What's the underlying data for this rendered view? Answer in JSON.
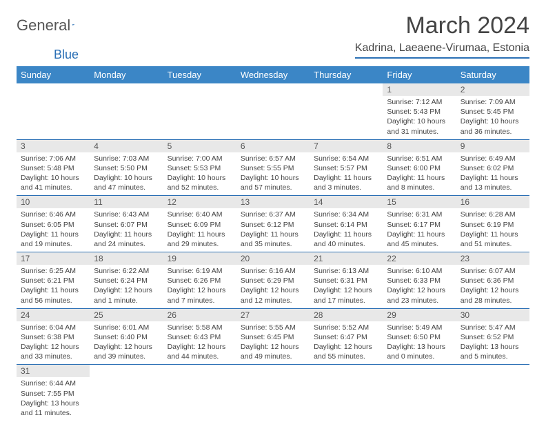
{
  "logo": {
    "word1": "General",
    "word2": "Blue",
    "flag_color": "#2a6fb5"
  },
  "title": "March 2024",
  "location": "Kadrina, Laeaene-Virumaa, Estonia",
  "colors": {
    "header_bg": "#3b86c6",
    "header_text": "#ffffff",
    "border": "#2a6fb5",
    "daynum_bg": "#e8e8e8",
    "text": "#444444"
  },
  "weekdays": [
    "Sunday",
    "Monday",
    "Tuesday",
    "Wednesday",
    "Thursday",
    "Friday",
    "Saturday"
  ],
  "rows": [
    [
      null,
      null,
      null,
      null,
      null,
      {
        "n": "1",
        "sr": "Sunrise: 7:12 AM",
        "ss": "Sunset: 5:43 PM",
        "dl1": "Daylight: 10 hours",
        "dl2": "and 31 minutes."
      },
      {
        "n": "2",
        "sr": "Sunrise: 7:09 AM",
        "ss": "Sunset: 5:45 PM",
        "dl1": "Daylight: 10 hours",
        "dl2": "and 36 minutes."
      }
    ],
    [
      {
        "n": "3",
        "sr": "Sunrise: 7:06 AM",
        "ss": "Sunset: 5:48 PM",
        "dl1": "Daylight: 10 hours",
        "dl2": "and 41 minutes."
      },
      {
        "n": "4",
        "sr": "Sunrise: 7:03 AM",
        "ss": "Sunset: 5:50 PM",
        "dl1": "Daylight: 10 hours",
        "dl2": "and 47 minutes."
      },
      {
        "n": "5",
        "sr": "Sunrise: 7:00 AM",
        "ss": "Sunset: 5:53 PM",
        "dl1": "Daylight: 10 hours",
        "dl2": "and 52 minutes."
      },
      {
        "n": "6",
        "sr": "Sunrise: 6:57 AM",
        "ss": "Sunset: 5:55 PM",
        "dl1": "Daylight: 10 hours",
        "dl2": "and 57 minutes."
      },
      {
        "n": "7",
        "sr": "Sunrise: 6:54 AM",
        "ss": "Sunset: 5:57 PM",
        "dl1": "Daylight: 11 hours",
        "dl2": "and 3 minutes."
      },
      {
        "n": "8",
        "sr": "Sunrise: 6:51 AM",
        "ss": "Sunset: 6:00 PM",
        "dl1": "Daylight: 11 hours",
        "dl2": "and 8 minutes."
      },
      {
        "n": "9",
        "sr": "Sunrise: 6:49 AM",
        "ss": "Sunset: 6:02 PM",
        "dl1": "Daylight: 11 hours",
        "dl2": "and 13 minutes."
      }
    ],
    [
      {
        "n": "10",
        "sr": "Sunrise: 6:46 AM",
        "ss": "Sunset: 6:05 PM",
        "dl1": "Daylight: 11 hours",
        "dl2": "and 19 minutes."
      },
      {
        "n": "11",
        "sr": "Sunrise: 6:43 AM",
        "ss": "Sunset: 6:07 PM",
        "dl1": "Daylight: 11 hours",
        "dl2": "and 24 minutes."
      },
      {
        "n": "12",
        "sr": "Sunrise: 6:40 AM",
        "ss": "Sunset: 6:09 PM",
        "dl1": "Daylight: 11 hours",
        "dl2": "and 29 minutes."
      },
      {
        "n": "13",
        "sr": "Sunrise: 6:37 AM",
        "ss": "Sunset: 6:12 PM",
        "dl1": "Daylight: 11 hours",
        "dl2": "and 35 minutes."
      },
      {
        "n": "14",
        "sr": "Sunrise: 6:34 AM",
        "ss": "Sunset: 6:14 PM",
        "dl1": "Daylight: 11 hours",
        "dl2": "and 40 minutes."
      },
      {
        "n": "15",
        "sr": "Sunrise: 6:31 AM",
        "ss": "Sunset: 6:17 PM",
        "dl1": "Daylight: 11 hours",
        "dl2": "and 45 minutes."
      },
      {
        "n": "16",
        "sr": "Sunrise: 6:28 AM",
        "ss": "Sunset: 6:19 PM",
        "dl1": "Daylight: 11 hours",
        "dl2": "and 51 minutes."
      }
    ],
    [
      {
        "n": "17",
        "sr": "Sunrise: 6:25 AM",
        "ss": "Sunset: 6:21 PM",
        "dl1": "Daylight: 11 hours",
        "dl2": "and 56 minutes."
      },
      {
        "n": "18",
        "sr": "Sunrise: 6:22 AM",
        "ss": "Sunset: 6:24 PM",
        "dl1": "Daylight: 12 hours",
        "dl2": "and 1 minute."
      },
      {
        "n": "19",
        "sr": "Sunrise: 6:19 AM",
        "ss": "Sunset: 6:26 PM",
        "dl1": "Daylight: 12 hours",
        "dl2": "and 7 minutes."
      },
      {
        "n": "20",
        "sr": "Sunrise: 6:16 AM",
        "ss": "Sunset: 6:29 PM",
        "dl1": "Daylight: 12 hours",
        "dl2": "and 12 minutes."
      },
      {
        "n": "21",
        "sr": "Sunrise: 6:13 AM",
        "ss": "Sunset: 6:31 PM",
        "dl1": "Daylight: 12 hours",
        "dl2": "and 17 minutes."
      },
      {
        "n": "22",
        "sr": "Sunrise: 6:10 AM",
        "ss": "Sunset: 6:33 PM",
        "dl1": "Daylight: 12 hours",
        "dl2": "and 23 minutes."
      },
      {
        "n": "23",
        "sr": "Sunrise: 6:07 AM",
        "ss": "Sunset: 6:36 PM",
        "dl1": "Daylight: 12 hours",
        "dl2": "and 28 minutes."
      }
    ],
    [
      {
        "n": "24",
        "sr": "Sunrise: 6:04 AM",
        "ss": "Sunset: 6:38 PM",
        "dl1": "Daylight: 12 hours",
        "dl2": "and 33 minutes."
      },
      {
        "n": "25",
        "sr": "Sunrise: 6:01 AM",
        "ss": "Sunset: 6:40 PM",
        "dl1": "Daylight: 12 hours",
        "dl2": "and 39 minutes."
      },
      {
        "n": "26",
        "sr": "Sunrise: 5:58 AM",
        "ss": "Sunset: 6:43 PM",
        "dl1": "Daylight: 12 hours",
        "dl2": "and 44 minutes."
      },
      {
        "n": "27",
        "sr": "Sunrise: 5:55 AM",
        "ss": "Sunset: 6:45 PM",
        "dl1": "Daylight: 12 hours",
        "dl2": "and 49 minutes."
      },
      {
        "n": "28",
        "sr": "Sunrise: 5:52 AM",
        "ss": "Sunset: 6:47 PM",
        "dl1": "Daylight: 12 hours",
        "dl2": "and 55 minutes."
      },
      {
        "n": "29",
        "sr": "Sunrise: 5:49 AM",
        "ss": "Sunset: 6:50 PM",
        "dl1": "Daylight: 13 hours",
        "dl2": "and 0 minutes."
      },
      {
        "n": "30",
        "sr": "Sunrise: 5:47 AM",
        "ss": "Sunset: 6:52 PM",
        "dl1": "Daylight: 13 hours",
        "dl2": "and 5 minutes."
      }
    ],
    [
      {
        "n": "31",
        "sr": "Sunrise: 6:44 AM",
        "ss": "Sunset: 7:55 PM",
        "dl1": "Daylight: 13 hours",
        "dl2": "and 11 minutes."
      },
      null,
      null,
      null,
      null,
      null,
      null
    ]
  ]
}
